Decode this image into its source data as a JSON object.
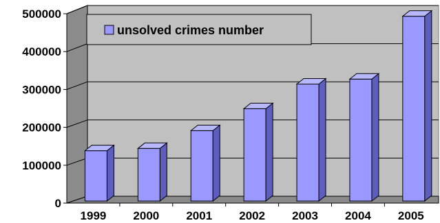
{
  "chart_data": {
    "type": "bar",
    "categories": [
      "1999",
      "2000",
      "2001",
      "2002",
      "2003",
      "2004",
      "2005"
    ],
    "series": [
      {
        "name": "unsolved crimes number",
        "values": [
          142000,
          148000,
          195000,
          253000,
          318000,
          331000,
          497000
        ]
      }
    ],
    "ylim": [
      0,
      500000
    ],
    "yticks": [
      "0",
      "100000",
      "200000",
      "300000",
      "400000",
      "500000"
    ],
    "grid": true,
    "legend_position": "top-left",
    "colors": {
      "bar_front": "#9999ff",
      "bar_side": "#5e5ebf",
      "bar_top": "#b8b8ff",
      "wall": "#c0c0c0",
      "floor": "#8a8a8a"
    }
  }
}
